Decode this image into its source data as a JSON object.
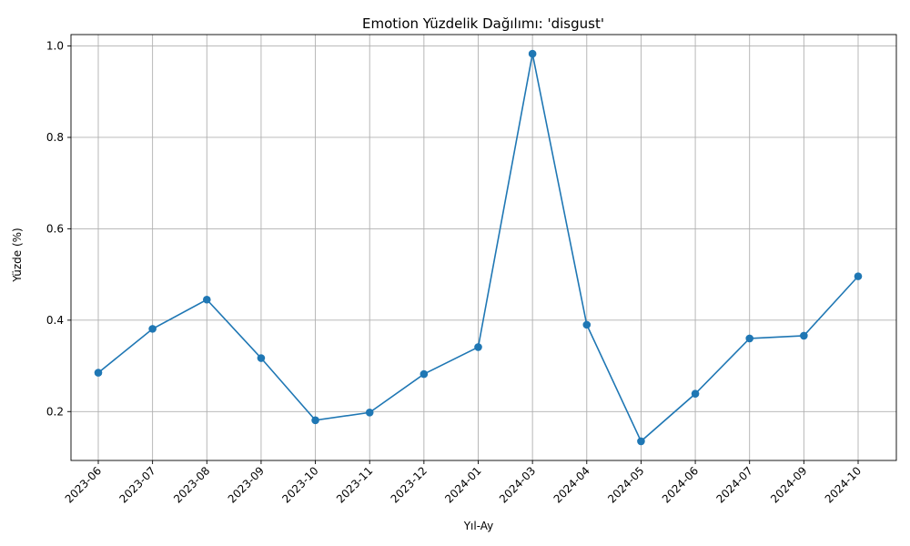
{
  "chart_data": {
    "type": "line",
    "title": "Emotion Yüzdelik Dağılımı: 'disgust'",
    "xlabel": "Yıl-Ay",
    "ylabel": "Yüzde (%)",
    "categories": [
      "2023-06",
      "2023-07",
      "2023-08",
      "2023-09",
      "2023-10",
      "2023-11",
      "2023-12",
      "2024-01",
      "2024-03",
      "2024-04",
      "2024-05",
      "2024-06",
      "2024-07",
      "2024-09",
      "2024-10"
    ],
    "series": [
      {
        "values": [
          0.285,
          0.381,
          0.445,
          0.317,
          0.181,
          0.198,
          0.282,
          0.341,
          0.983,
          0.39,
          0.135,
          0.239,
          0.36,
          0.366,
          0.496
        ],
        "color": "#1f77b4",
        "marker": "circle"
      }
    ],
    "yticks": [
      0.2,
      0.4,
      0.6,
      0.8,
      1.0
    ],
    "ytick_labels": [
      "0.2",
      "0.4",
      "0.6",
      "0.8",
      "1.0"
    ],
    "ylim": [
      0.093,
      1.025
    ],
    "grid": true,
    "legend": false
  }
}
